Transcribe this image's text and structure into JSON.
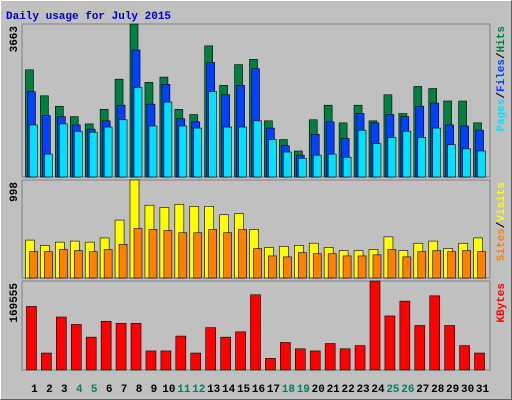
{
  "title": "Daily usage for July 2015",
  "chart_data": [
    {
      "type": "bar",
      "ylim": [
        0,
        3663
      ],
      "yticks": [
        3663
      ],
      "series": [
        {
          "name": "Hits",
          "color": "#008040",
          "values": [
            2567,
            1944,
            1694,
            1445,
            1271,
            1620,
            2342,
            3663,
            2267,
            2392,
            1620,
            1495,
            3140,
            2193,
            2691,
            2816,
            1345,
            897,
            623,
            1370,
            1719,
            1296,
            1719,
            1345,
            1968,
            1520,
            2168,
            2118,
            1819,
            1819,
            1296
          ]
        },
        {
          "name": "Files",
          "color": "#0040ff",
          "values": [
            2043,
            1470,
            1445,
            1246,
            1146,
            1345,
            1719,
            3040,
            1744,
            2218,
            1395,
            1321,
            2741,
            1968,
            2193,
            2591,
            1171,
            748,
            523,
            1022,
            1321,
            922,
            1520,
            1296,
            1495,
            1445,
            1694,
            1769,
            1246,
            1221,
            1121
          ]
        },
        {
          "name": "Pages",
          "color": "#00e0ff",
          "values": [
            1246,
            548,
            1271,
            1096,
            1071,
            1196,
            1370,
            2143,
            1221,
            1794,
            1221,
            1171,
            2043,
            1196,
            1196,
            1345,
            897,
            598,
            449,
            523,
            548,
            473,
            1121,
            797,
            947,
            1096,
            947,
            1171,
            772,
            673,
            623
          ]
        }
      ]
    },
    {
      "type": "bar",
      "ylim": [
        0,
        998
      ],
      "yticks": [
        998
      ],
      "series": [
        {
          "name": "Visits",
          "color": "#ffff00",
          "values": [
            386,
            333,
            365,
            376,
            365,
            408,
            590,
            998,
            741,
            719,
            751,
            730,
            730,
            644,
            655,
            494,
            311,
            322,
            333,
            354,
            311,
            279,
            279,
            290,
            419,
            279,
            354,
            376,
            300,
            354,
            408
          ]
        },
        {
          "name": "Sites",
          "color": "#ff8000",
          "values": [
            268,
            268,
            290,
            279,
            268,
            290,
            343,
            504,
            494,
            483,
            461,
            461,
            494,
            461,
            494,
            300,
            225,
            215,
            258,
            247,
            247,
            225,
            225,
            236,
            290,
            215,
            268,
            279,
            268,
            279,
            268
          ]
        }
      ]
    },
    {
      "type": "bar",
      "ylim": [
        0,
        169555
      ],
      "yticks": [
        169555
      ],
      "categories": [
        "1",
        "2",
        "3",
        "4",
        "5",
        "6",
        "7",
        "8",
        "9",
        "10",
        "11",
        "12",
        "13",
        "14",
        "15",
        "16",
        "17",
        "18",
        "19",
        "20",
        "21",
        "22",
        "23",
        "24",
        "25",
        "26",
        "27",
        "28",
        "29",
        "30",
        "31"
      ],
      "category_colors": [
        "#000000",
        "#000000",
        "#000000",
        "#00805c",
        "#00805c",
        "#000000",
        "#000000",
        "#000000",
        "#000000",
        "#000000",
        "#00805c",
        "#00805c",
        "#000000",
        "#000000",
        "#000000",
        "#000000",
        "#000000",
        "#00805c",
        "#00805c",
        "#000000",
        "#000000",
        "#000000",
        "#000000",
        "#000000",
        "#00805c",
        "#00805c",
        "#000000",
        "#000000",
        "#000000",
        "#000000",
        "#000000"
      ],
      "series": [
        {
          "name": "KBytes",
          "color": "#ff0000",
          "values": [
            121111,
            32296,
            100925,
            86795,
            62574,
            92851,
            88814,
            88814,
            36333,
            36333,
            64592,
            32296,
            80740,
            62574,
            72666,
            143314,
            22204,
            52481,
            40370,
            36333,
            50463,
            40370,
            46426,
            169555,
            102944,
            131203,
            84777,
            141296,
            84777,
            46426,
            32296
          ]
        }
      ]
    }
  ]
}
